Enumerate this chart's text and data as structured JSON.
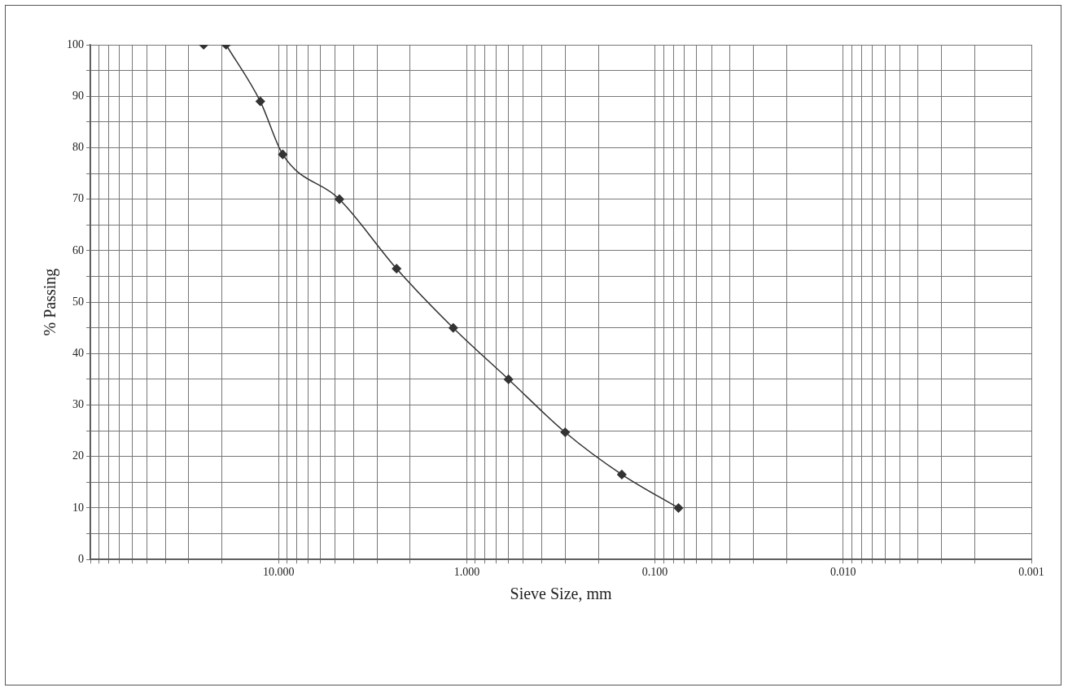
{
  "chart_data": {
    "type": "line",
    "xlabel": "Sieve Size, mm",
    "ylabel": "% Passing",
    "log": "x",
    "xlim": [
      100,
      0.001
    ],
    "xticks": [
      {
        "value": 100,
        "label": null
      },
      {
        "value": 90,
        "label": null
      },
      {
        "value": 80,
        "label": null
      },
      {
        "value": 70,
        "label": null
      },
      {
        "value": 60,
        "label": null
      },
      {
        "value": 50,
        "label": null
      },
      {
        "value": 40,
        "label": null
      },
      {
        "value": 30,
        "label": null
      },
      {
        "value": 20,
        "label": null
      },
      {
        "value": 10,
        "label": "10.000"
      },
      {
        "value": 9,
        "label": null
      },
      {
        "value": 8,
        "label": null
      },
      {
        "value": 7,
        "label": null
      },
      {
        "value": 6,
        "label": null
      },
      {
        "value": 5,
        "label": null
      },
      {
        "value": 4,
        "label": null
      },
      {
        "value": 3,
        "label": null
      },
      {
        "value": 2,
        "label": null
      },
      {
        "value": 1,
        "label": "1.000"
      },
      {
        "value": 0.9,
        "label": null
      },
      {
        "value": 0.8,
        "label": null
      },
      {
        "value": 0.7,
        "label": null
      },
      {
        "value": 0.6,
        "label": null
      },
      {
        "value": 0.5,
        "label": null
      },
      {
        "value": 0.4,
        "label": null
      },
      {
        "value": 0.3,
        "label": null
      },
      {
        "value": 0.2,
        "label": null
      },
      {
        "value": 0.1,
        "label": "0.100"
      },
      {
        "value": 0.09,
        "label": null
      },
      {
        "value": 0.08,
        "label": null
      },
      {
        "value": 0.07,
        "label": null
      },
      {
        "value": 0.06,
        "label": null
      },
      {
        "value": 0.05,
        "label": null
      },
      {
        "value": 0.04,
        "label": null
      },
      {
        "value": 0.03,
        "label": null
      },
      {
        "value": 0.02,
        "label": null
      },
      {
        "value": 0.01,
        "label": "0.010"
      },
      {
        "value": 0.009,
        "label": null
      },
      {
        "value": 0.008,
        "label": null
      },
      {
        "value": 0.007,
        "label": null
      },
      {
        "value": 0.006,
        "label": null
      },
      {
        "value": 0.005,
        "label": null
      },
      {
        "value": 0.004,
        "label": null
      },
      {
        "value": 0.003,
        "label": null
      },
      {
        "value": 0.002,
        "label": null
      },
      {
        "value": 0.001,
        "label": "0.001"
      }
    ],
    "ylim": [
      0,
      100
    ],
    "yticks": [
      0,
      {
        "value": 5,
        "label": null
      },
      10,
      {
        "value": 15,
        "label": null
      },
      20,
      {
        "value": 25,
        "label": null
      },
      30,
      {
        "value": 35,
        "label": null
      },
      40,
      {
        "value": 45,
        "label": null
      },
      50,
      {
        "value": 55,
        "label": null
      },
      60,
      {
        "value": 65,
        "label": null
      },
      70,
      {
        "value": 75,
        "label": null
      },
      80,
      {
        "value": 85,
        "label": null
      },
      90,
      {
        "value": 95,
        "label": null
      },
      100
    ],
    "grid": true,
    "marker": "diamond",
    "line_style": "solid",
    "series": [
      {
        "type": "scatter",
        "color": "#333333",
        "x": [
          25
        ],
        "values": [
          100
        ]
      },
      {
        "color": "#333333",
        "x": [
          19,
          12.5,
          9.5,
          4.75,
          2.36,
          1.18,
          0.6,
          0.3,
          0.15,
          0.075
        ],
        "values": [
          100,
          89,
          78.7,
          70,
          56.5,
          45,
          35,
          24.7,
          16.5,
          10
        ]
      }
    ]
  }
}
